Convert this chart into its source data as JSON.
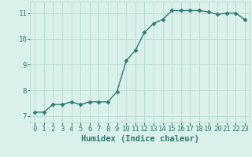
{
  "x": [
    0,
    1,
    2,
    3,
    4,
    5,
    6,
    7,
    8,
    9,
    10,
    11,
    12,
    13,
    14,
    15,
    16,
    17,
    18,
    19,
    20,
    21,
    22,
    23
  ],
  "y": [
    7.15,
    7.15,
    7.45,
    7.45,
    7.55,
    7.45,
    7.55,
    7.55,
    7.55,
    7.95,
    9.15,
    9.55,
    10.25,
    10.6,
    10.75,
    11.1,
    11.1,
    11.1,
    11.1,
    11.05,
    10.95,
    11.0,
    11.0,
    10.75
  ],
  "line_color": "#2d7a6e",
  "marker": "D",
  "marker_size": 2.5,
  "bg_color": "#daf0eb",
  "grid_color": "#b8d8d2",
  "xlabel": "Humidex (Indice chaleur)",
  "xlim": [
    -0.5,
    23.5
  ],
  "ylim": [
    6.75,
    11.45
  ],
  "yticks": [
    7,
    8,
    9,
    10,
    11
  ],
  "xticks": [
    0,
    1,
    2,
    3,
    4,
    5,
    6,
    7,
    8,
    9,
    10,
    11,
    12,
    13,
    14,
    15,
    16,
    17,
    18,
    19,
    20,
    21,
    22,
    23
  ],
  "text_color": "#2d7a6e",
  "label_fontsize": 7.5,
  "tick_fontsize": 6.5,
  "line_width": 1.0
}
